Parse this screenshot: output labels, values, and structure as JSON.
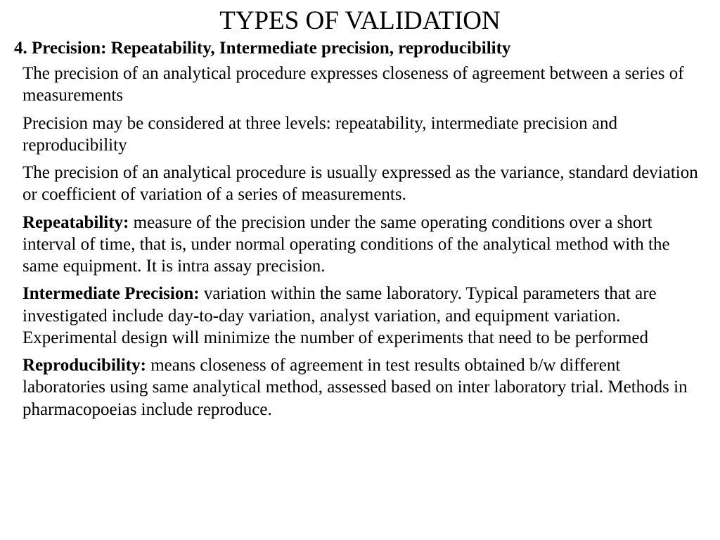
{
  "title": "TYPES OF VALIDATION",
  "heading": "4. Precision: Repeatability, Intermediate precision,  reproducibility",
  "p1": "The precision of an analytical procedure expresses closeness of agreement between a series of measurements",
  "p2": "Precision may be considered at three levels: repeatability, intermediate precision and reproducibility",
  "p3": "The precision of an analytical procedure is usually expressed as the variance, standard deviation or coefficient of variation of a series of measurements.",
  "p4_bold": "Repeatability:",
  "p4_rest": " measure of the precision under the same operating conditions over a short interval of time, that is, under normal operating conditions of the analytical method with the same equipment. It is intra assay precision.",
  "p5_bold": "Intermediate Precision:",
  "p5_rest": " variation within the same laboratory. Typical parameters that are investigated include day-to-day variation, analyst variation, and equipment variation. Experimental design will minimize the number of experiments that need to be performed",
  "p6_bold": "Reproducibility:",
  "p6_rest": " means closeness of agreement in test results obtained b/w different laboratories using same analytical method, assessed based on inter laboratory trial. Methods in pharmacopoeias include reproduce.",
  "colors": {
    "background": "#ffffff",
    "text": "#000000"
  },
  "typography": {
    "title_fontsize": 37,
    "heading_fontsize": 25,
    "body_fontsize": 25,
    "font_family": "Times New Roman"
  }
}
